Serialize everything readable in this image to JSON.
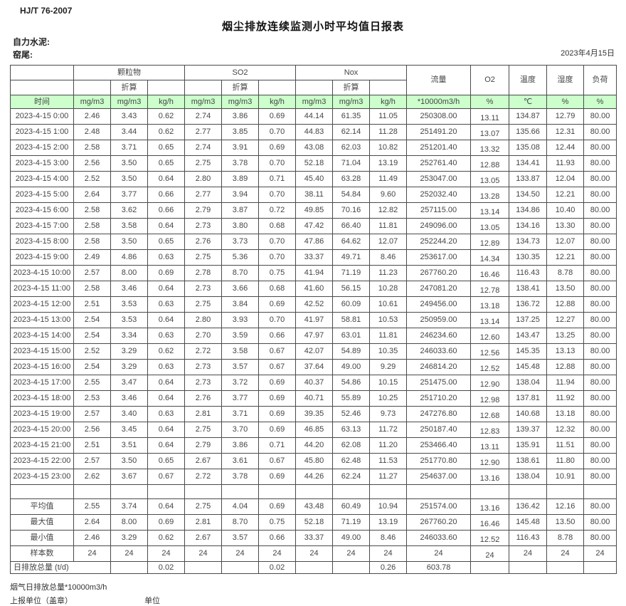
{
  "meta": {
    "standard": "HJ/T  76-2007",
    "title": "烟尘排放连续监测小时平均值日报表",
    "company": "自力水泥:",
    "site": "窑尾:",
    "date": "2023年4月15日"
  },
  "table": {
    "groups": [
      "颗粒物",
      "SO2",
      "Nox"
    ],
    "header": {
      "time_label": "时间",
      "conv_label": "折算",
      "flow_label": "流量",
      "o2_label": "O2",
      "temp_label": "温度",
      "humidity_label": "湿度",
      "load_label": "负荷",
      "units": [
        "mg/m3",
        "mg/m3",
        "kg/h",
        "mg/m3",
        "mg/m3",
        "kg/h",
        "mg/m3",
        "mg/m3",
        "kg/h",
        "*10000m3/h",
        "%",
        "℃",
        "%",
        "%"
      ]
    },
    "rows": [
      {
        "time": "2023-4-15 0:00",
        "values": [
          "2.46",
          "3.43",
          "0.62",
          "2.74",
          "3.86",
          "0.69",
          "44.14",
          "61.35",
          "11.05",
          "250308.00",
          "13.11",
          "134.87",
          "12.79",
          "80.00"
        ]
      },
      {
        "time": "2023-4-15 1:00",
        "values": [
          "2.48",
          "3.44",
          "0.62",
          "2.77",
          "3.85",
          "0.70",
          "44.83",
          "62.14",
          "11.28",
          "251491.20",
          "13.07",
          "135.66",
          "12.31",
          "80.00"
        ]
      },
      {
        "time": "2023-4-15 2:00",
        "values": [
          "2.58",
          "3.71",
          "0.65",
          "2.74",
          "3.91",
          "0.69",
          "43.08",
          "62.03",
          "10.82",
          "251201.40",
          "13.32",
          "135.08",
          "12.44",
          "80.00"
        ]
      },
      {
        "time": "2023-4-15 3:00",
        "values": [
          "2.56",
          "3.50",
          "0.65",
          "2.75",
          "3.78",
          "0.70",
          "52.18",
          "71.04",
          "13.19",
          "252761.40",
          "12.88",
          "134.41",
          "11.93",
          "80.00"
        ]
      },
      {
        "time": "2023-4-15 4:00",
        "values": [
          "2.52",
          "3.50",
          "0.64",
          "2.80",
          "3.89",
          "0.71",
          "45.40",
          "63.28",
          "11.49",
          "253047.00",
          "13.05",
          "133.87",
          "12.04",
          "80.00"
        ]
      },
      {
        "time": "2023-4-15 5:00",
        "values": [
          "2.64",
          "3.77",
          "0.66",
          "2.77",
          "3.94",
          "0.70",
          "38.11",
          "54.84",
          "9.60",
          "252032.40",
          "13.28",
          "134.50",
          "12.21",
          "80.00"
        ]
      },
      {
        "time": "2023-4-15 6:00",
        "values": [
          "2.58",
          "3.62",
          "0.66",
          "2.79",
          "3.87",
          "0.72",
          "49.85",
          "70.16",
          "12.82",
          "257115.00",
          "13.14",
          "134.86",
          "10.40",
          "80.00"
        ]
      },
      {
        "time": "2023-4-15 7:00",
        "values": [
          "2.58",
          "3.58",
          "0.64",
          "2.73",
          "3.80",
          "0.68",
          "47.42",
          "66.40",
          "11.81",
          "249096.00",
          "13.05",
          "134.16",
          "13.30",
          "80.00"
        ]
      },
      {
        "time": "2023-4-15 8:00",
        "values": [
          "2.58",
          "3.50",
          "0.65",
          "2.76",
          "3.73",
          "0.70",
          "47.86",
          "64.62",
          "12.07",
          "252244.20",
          "12.89",
          "134.73",
          "12.07",
          "80.00"
        ]
      },
      {
        "time": "2023-4-15 9:00",
        "values": [
          "2.49",
          "4.86",
          "0.63",
          "2.75",
          "5.36",
          "0.70",
          "33.37",
          "49.71",
          "8.46",
          "253617.00",
          "14.34",
          "130.35",
          "12.21",
          "80.00"
        ]
      },
      {
        "time": "2023-4-15 10:00",
        "values": [
          "2.57",
          "8.00",
          "0.69",
          "2.78",
          "8.70",
          "0.75",
          "41.94",
          "71.19",
          "11.23",
          "267760.20",
          "16.46",
          "116.43",
          "8.78",
          "80.00"
        ]
      },
      {
        "time": "2023-4-15 11:00",
        "values": [
          "2.58",
          "3.46",
          "0.64",
          "2.73",
          "3.66",
          "0.68",
          "41.60",
          "56.15",
          "10.28",
          "247081.20",
          "12.78",
          "138.41",
          "13.50",
          "80.00"
        ]
      },
      {
        "time": "2023-4-15 12:00",
        "values": [
          "2.51",
          "3.53",
          "0.63",
          "2.75",
          "3.84",
          "0.69",
          "42.52",
          "60.09",
          "10.61",
          "249456.00",
          "13.18",
          "136.72",
          "12.88",
          "80.00"
        ]
      },
      {
        "time": "2023-4-15 13:00",
        "values": [
          "2.54",
          "3.53",
          "0.64",
          "2.80",
          "3.93",
          "0.70",
          "41.97",
          "58.81",
          "10.53",
          "250959.00",
          "13.14",
          "137.25",
          "12.27",
          "80.00"
        ]
      },
      {
        "time": "2023-4-15 14:00",
        "values": [
          "2.54",
          "3.34",
          "0.63",
          "2.70",
          "3.59",
          "0.66",
          "47.97",
          "63.01",
          "11.81",
          "246234.60",
          "12.60",
          "143.47",
          "13.25",
          "80.00"
        ]
      },
      {
        "time": "2023-4-15 15:00",
        "values": [
          "2.52",
          "3.29",
          "0.62",
          "2.72",
          "3.58",
          "0.67",
          "42.07",
          "54.89",
          "10.35",
          "246033.60",
          "12.56",
          "145.35",
          "13.13",
          "80.00"
        ]
      },
      {
        "time": "2023-4-15 16:00",
        "values": [
          "2.54",
          "3.29",
          "0.63",
          "2.73",
          "3.57",
          "0.67",
          "37.64",
          "49.00",
          "9.29",
          "246814.20",
          "12.52",
          "145.48",
          "12.88",
          "80.00"
        ]
      },
      {
        "time": "2023-4-15 17:00",
        "values": [
          "2.55",
          "3.47",
          "0.64",
          "2.73",
          "3.72",
          "0.69",
          "40.37",
          "54.86",
          "10.15",
          "251475.00",
          "12.90",
          "138.04",
          "11.94",
          "80.00"
        ]
      },
      {
        "time": "2023-4-15 18:00",
        "values": [
          "2.53",
          "3.46",
          "0.64",
          "2.76",
          "3.77",
          "0.69",
          "40.71",
          "55.89",
          "10.25",
          "251710.20",
          "12.98",
          "137.81",
          "11.92",
          "80.00"
        ]
      },
      {
        "time": "2023-4-15 19:00",
        "values": [
          "2.57",
          "3.40",
          "0.63",
          "2.81",
          "3.71",
          "0.69",
          "39.35",
          "52.46",
          "9.73",
          "247276.80",
          "12.68",
          "140.68",
          "13.18",
          "80.00"
        ]
      },
      {
        "time": "2023-4-15 20:00",
        "values": [
          "2.56",
          "3.45",
          "0.64",
          "2.75",
          "3.70",
          "0.69",
          "46.85",
          "63.13",
          "11.72",
          "250187.40",
          "12.83",
          "139.37",
          "12.32",
          "80.00"
        ]
      },
      {
        "time": "2023-4-15 21:00",
        "values": [
          "2.51",
          "3.51",
          "0.64",
          "2.79",
          "3.86",
          "0.71",
          "44.20",
          "62.08",
          "11.20",
          "253466.40",
          "13.11",
          "135.91",
          "11.51",
          "80.00"
        ]
      },
      {
        "time": "2023-4-15 22:00",
        "values": [
          "2.57",
          "3.50",
          "0.65",
          "2.67",
          "3.61",
          "0.67",
          "45.80",
          "62.48",
          "11.53",
          "251770.80",
          "12.90",
          "138.61",
          "11.80",
          "80.00"
        ]
      },
      {
        "time": "2023-4-15 23:00",
        "values": [
          "2.62",
          "3.67",
          "0.67",
          "2.72",
          "3.78",
          "0.69",
          "44.26",
          "62.24",
          "11.27",
          "254637.00",
          "13.16",
          "138.04",
          "10.91",
          "80.00"
        ]
      }
    ],
    "summary": [
      {
        "label": "平均值",
        "values": [
          "2.55",
          "3.74",
          "0.64",
          "2.75",
          "4.04",
          "0.69",
          "43.48",
          "60.49",
          "10.94",
          "251574.00",
          "13.16",
          "136.42",
          "12.16",
          "80.00"
        ]
      },
      {
        "label": "最大值",
        "values": [
          "2.64",
          "8.00",
          "0.69",
          "2.81",
          "8.70",
          "0.75",
          "52.18",
          "71.19",
          "13.19",
          "267760.20",
          "16.46",
          "145.48",
          "13.50",
          "80.00"
        ]
      },
      {
        "label": "最小值",
        "values": [
          "2.46",
          "3.29",
          "0.62",
          "2.67",
          "3.57",
          "0.66",
          "33.37",
          "49.00",
          "8.46",
          "246033.60",
          "12.52",
          "116.43",
          "8.78",
          "80.00"
        ]
      },
      {
        "label": "样本数",
        "values": [
          "24",
          "24",
          "24",
          "24",
          "24",
          "24",
          "24",
          "24",
          "24",
          "24",
          "24",
          "24",
          "24",
          "24"
        ]
      }
    ],
    "daily_total": {
      "label": "日排放总量 (t/d)",
      "values": [
        "",
        "0.02",
        "",
        "",
        "0.02",
        "",
        "",
        "0.26",
        "603.78",
        "",
        "",
        "",
        ""
      ]
    }
  },
  "footer": {
    "note": "烟气日排放总量*10000m3/h",
    "report_unit": "上报单位（盖章）",
    "unit_word": "单位"
  }
}
